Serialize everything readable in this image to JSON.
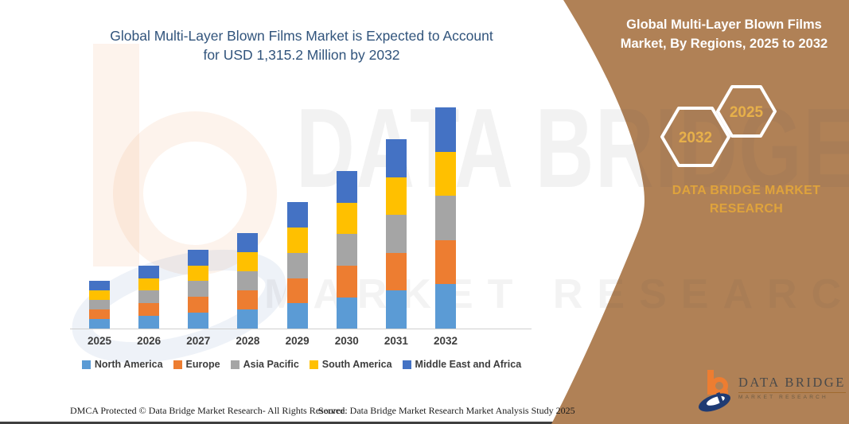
{
  "page": {
    "main_title_line1": "Global Multi-Layer Blown Films Market is Expected to Account",
    "main_title_line2": "for USD 1,315.2 Million by 2032",
    "footer_left": "DMCA Protected © Data Bridge Market Research-  All Rights Reserved.",
    "footer_right": "Source: Data Bridge Market Research  Market Analysis Study 2025"
  },
  "chart_data": {
    "type": "bar",
    "stacked": true,
    "title": "Global Multi-Layer Blown Films Market is Expected to Account for USD 1,315.2 Million by 2032",
    "title_lines": [
      "Global Multi-Layer Blown Films Market is Expected to Account",
      "for USD 1,315.2 Million by 2032"
    ],
    "categories": [
      "2025",
      "2026",
      "2027",
      "2028",
      "2029",
      "2030",
      "2031",
      "2032"
    ],
    "series": [
      {
        "name": "North America",
        "color": "#5B9BD5",
        "values": [
          57,
          75,
          94,
          114,
          150,
          187,
          225,
          263
        ]
      },
      {
        "name": "Europe",
        "color": "#ED7D31",
        "values": [
          57,
          75,
          94,
          114,
          150,
          187,
          225,
          263
        ]
      },
      {
        "name": "Asia Pacific",
        "color": "#A5A5A5",
        "values": [
          57,
          75,
          94,
          113,
          151,
          188,
          225,
          263
        ]
      },
      {
        "name": "South America",
        "color": "#FFC000",
        "values": [
          56,
          74,
          93,
          113,
          150,
          187,
          225,
          263
        ]
      },
      {
        "name": "Middle East and Africa",
        "color": "#4472C4",
        "values": [
          57,
          75,
          93,
          114,
          151,
          188,
          226,
          263.2
        ]
      }
    ],
    "estimated_totals": [
      284,
      374,
      468,
      568,
      752,
      937,
      1126,
      1315.2
    ],
    "xlabel": "",
    "ylabel": "",
    "ylim": [
      0,
      1315.2
    ],
    "grid": false,
    "legend_position": "bottom"
  },
  "panel": {
    "background_color": "#B08156",
    "title_line1": "Global Multi-Layer Blown Films",
    "title_line2": "Market, By Regions, 2025 to 2032",
    "hexagons": [
      {
        "year": "2032"
      },
      {
        "year": "2025"
      }
    ],
    "hexagon_text_color": "#E7B04A",
    "brand_line1": "DATA BRIDGE MARKET",
    "brand_line2": "RESEARCH",
    "logo": {
      "name": "DATA BRIDGE",
      "subtitle": "MARKET RESEARCH",
      "orange": "#ED7D31",
      "navy": "#1F3B73"
    }
  },
  "watermark": {
    "line1": "DATA BRIDGE",
    "line2": "MARKET RESEARCH"
  },
  "colors": {
    "title_text": "#31547C",
    "axis_text": "#3d3d3d",
    "footer_text": "#1c1c1c"
  }
}
